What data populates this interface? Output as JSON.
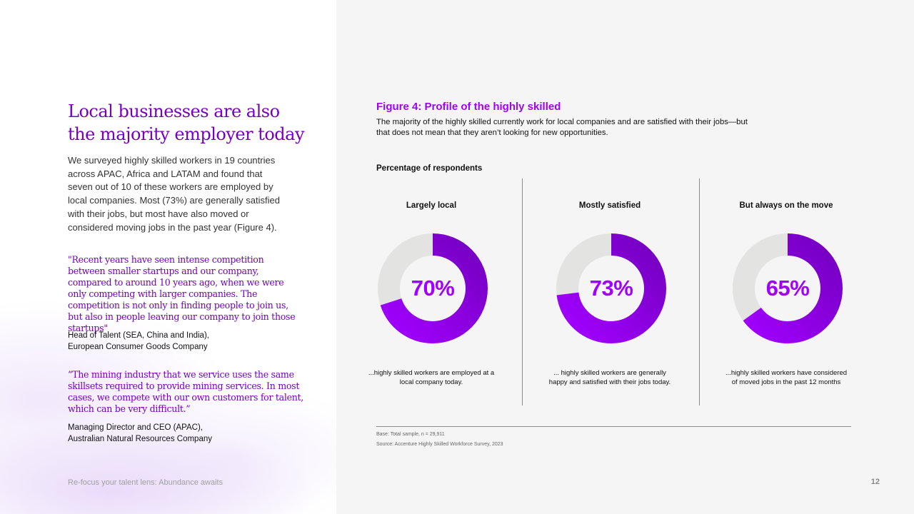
{
  "left": {
    "headline": "Local businesses are also the majority employer today",
    "intro": "We surveyed highly skilled workers in 19 countries across APAC, Africa and LATAM and found that seven out of 10 of these workers are employed by local companies. Most (73%) are generally satisfied with their jobs, but most have also moved or considered moving jobs in the past year (Figure 4).",
    "quotes": [
      {
        "text": "\"Recent years have seen intense competition between smaller startups and our company, compared to around 10 years ago, when we were only competing with larger companies. The competition is not only in finding people to join us, but also in people leaving our company to join those startups\"",
        "attribution_line1": "Head of Talent (SEA, China and India),",
        "attribution_line2": "European Consumer Goods Company"
      },
      {
        "text": "“The mining industry that we service uses the same skillsets required to provide mining services. In most cases, we compete with our own customers for talent, which can be very difficult.”",
        "attribution_line1": "Managing Director and CEO (APAC),",
        "attribution_line2": "Australian Natural Resources Company"
      }
    ],
    "footer": "Re-focus your talent lens: Abundance awaits"
  },
  "page_number": "12",
  "colors": {
    "accent": "#a100ff",
    "accent_dark": "#7500c0",
    "track": "#e3e3e1"
  },
  "chart_data": {
    "type": "pie",
    "variant": "donut",
    "title": "Figure 4: Profile of the highly skilled",
    "subtitle": "The majority of the highly skilled currently work for local companies and are satisfied with their jobs—but that does not mean that they aren’t looking for new opportunities.",
    "ylabel": "Percentage of respondents",
    "panels": [
      {
        "title": "Largely local",
        "value": 70,
        "label": "70%",
        "caption": "...highly skilled workers are employed at a local company today."
      },
      {
        "title": "Mostly satisfied",
        "value": 73,
        "label": "73%",
        "caption": "... highly skilled workers are generally happy and satisfied with their jobs today."
      },
      {
        "title": "But always on the move",
        "value": 65,
        "label": "65%",
        "caption": "...highly skilled workers have considered of moved jobs in the past 12 months"
      }
    ],
    "base": "Base: Total sample, n = 29,911",
    "source": "Source: Accenture Highly Skilled Workforce Survey, 2023"
  }
}
